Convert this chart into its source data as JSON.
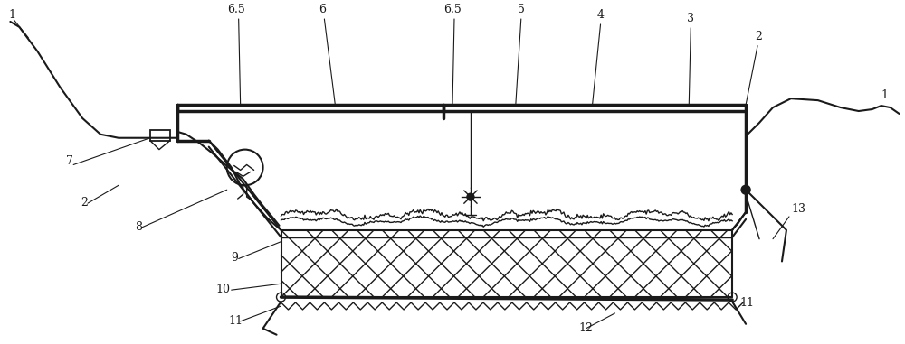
{
  "bg_color": "#ffffff",
  "line_color": "#1a1a1a",
  "figsize": [
    10.0,
    3.81
  ],
  "dpi": 100,
  "lw_thick": 2.5,
  "lw_med": 1.5,
  "lw_thin": 1.0,
  "lw_label": 0.8
}
